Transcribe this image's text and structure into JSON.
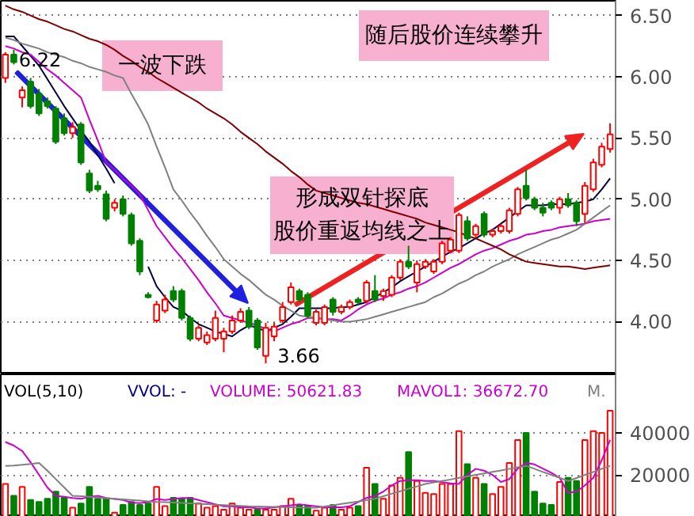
{
  "chart_data": [
    {
      "type": "candlestick",
      "categories": [
        null,
        null,
        null,
        null,
        null,
        null,
        null,
        null,
        null,
        null,
        null,
        null,
        null,
        null,
        null,
        null,
        null,
        null,
        null,
        null,
        null,
        null,
        null,
        null,
        null,
        null,
        null,
        null,
        null,
        null,
        null,
        null,
        null,
        null,
        null,
        null,
        null,
        null,
        null,
        null,
        null,
        null,
        null,
        null,
        null,
        null,
        null,
        null,
        null,
        null,
        null,
        null,
        null,
        null,
        null,
        null,
        null,
        null,
        null,
        null,
        null,
        null,
        null,
        null,
        null,
        null,
        null,
        null,
        null,
        null,
        null,
        null,
        null
      ],
      "ohlc": [
        [
          5.99,
          6.2,
          5.95,
          6.18
        ],
        [
          6.18,
          6.22,
          6.1,
          6.12
        ],
        [
          5.83,
          5.92,
          5.75,
          5.89
        ],
        [
          5.96,
          5.99,
          5.74,
          5.76
        ],
        [
          5.86,
          5.9,
          5.68,
          5.7
        ],
        [
          5.8,
          5.83,
          5.74,
          5.76
        ],
        [
          5.74,
          5.76,
          5.45,
          5.47
        ],
        [
          5.66,
          5.7,
          5.52,
          5.54
        ],
        [
          5.54,
          5.63,
          5.5,
          5.59
        ],
        [
          5.61,
          5.63,
          5.28,
          5.3
        ],
        [
          5.21,
          5.24,
          5.05,
          5.07
        ],
        [
          5.11,
          5.15,
          5.06,
          5.08
        ],
        [
          5.04,
          5.07,
          4.82,
          4.84
        ],
        [
          4.93,
          5.0,
          4.9,
          4.97
        ],
        [
          5.0,
          5.03,
          4.86,
          4.88
        ],
        [
          4.87,
          4.89,
          4.62,
          4.64
        ],
        [
          4.66,
          4.68,
          4.38,
          4.41
        ],
        [
          4.22,
          4.24,
          4.19,
          4.2
        ],
        [
          4.01,
          4.17,
          3.99,
          4.14
        ],
        [
          4.09,
          4.22,
          4.07,
          4.18
        ],
        [
          4.25,
          4.29,
          4.16,
          4.18
        ],
        [
          4.25,
          4.27,
          4.01,
          4.03
        ],
        [
          4.03,
          4.05,
          3.84,
          3.86
        ],
        [
          3.86,
          3.97,
          3.84,
          3.95
        ],
        [
          3.83,
          3.92,
          3.81,
          3.89
        ],
        [
          3.86,
          4.09,
          3.84,
          4.03
        ],
        [
          3.86,
          3.95,
          3.75,
          3.92
        ],
        [
          3.92,
          4.05,
          3.9,
          4.01
        ],
        [
          4.01,
          4.11,
          3.99,
          4.08
        ],
        [
          4.09,
          4.12,
          3.94,
          3.96
        ],
        [
          4.01,
          4.03,
          3.77,
          3.79
        ],
        [
          3.72,
          3.99,
          3.66,
          3.95
        ],
        [
          3.88,
          3.99,
          3.84,
          3.96
        ],
        [
          4.01,
          4.16,
          3.99,
          4.12
        ],
        [
          4.16,
          4.32,
          4.14,
          4.28
        ],
        [
          4.25,
          4.27,
          4.16,
          4.18
        ],
        [
          4.22,
          4.24,
          4.03,
          4.05
        ],
        [
          3.99,
          4.1,
          3.97,
          4.08
        ],
        [
          3.99,
          4.14,
          3.97,
          4.12
        ],
        [
          4.18,
          4.2,
          4.05,
          4.08
        ],
        [
          4.08,
          4.14,
          4.06,
          4.12
        ],
        [
          4.12,
          4.18,
          4.1,
          4.16
        ],
        [
          4.18,
          4.2,
          4.14,
          4.16
        ],
        [
          4.17,
          4.34,
          4.15,
          4.32
        ],
        [
          4.25,
          4.38,
          4.16,
          4.18
        ],
        [
          4.21,
          4.27,
          4.17,
          4.25
        ],
        [
          4.22,
          4.38,
          4.2,
          4.36
        ],
        [
          4.36,
          4.51,
          4.34,
          4.49
        ],
        [
          4.49,
          4.62,
          4.43,
          4.45
        ],
        [
          4.32,
          4.5,
          4.24,
          4.47
        ],
        [
          4.45,
          4.51,
          4.43,
          4.49
        ],
        [
          4.41,
          4.51,
          4.39,
          4.49
        ],
        [
          4.49,
          4.66,
          4.47,
          4.64
        ],
        [
          4.58,
          4.69,
          4.56,
          4.67
        ],
        [
          4.58,
          4.89,
          4.56,
          4.87
        ],
        [
          4.82,
          4.86,
          4.66,
          4.68
        ],
        [
          4.71,
          4.8,
          4.69,
          4.78
        ],
        [
          4.88,
          4.9,
          4.69,
          4.71
        ],
        [
          4.71,
          4.76,
          4.69,
          4.74
        ],
        [
          4.74,
          4.8,
          4.72,
          4.78
        ],
        [
          4.74,
          4.93,
          4.72,
          4.91
        ],
        [
          4.88,
          5.1,
          4.86,
          5.08
        ],
        [
          5.11,
          5.24,
          4.99,
          5.01
        ],
        [
          5.0,
          5.02,
          4.91,
          4.93
        ],
        [
          4.93,
          4.97,
          4.86,
          4.89
        ],
        [
          4.97,
          4.99,
          4.91,
          4.93
        ],
        [
          4.93,
          5.02,
          4.88,
          5.0
        ],
        [
          5.0,
          5.05,
          4.93,
          4.95
        ],
        [
          4.97,
          4.99,
          4.78,
          4.82
        ],
        [
          4.88,
          5.14,
          4.8,
          5.11
        ],
        [
          5.08,
          5.33,
          5.06,
          5.3
        ],
        [
          5.28,
          5.46,
          5.26,
          5.43
        ],
        [
          5.41,
          5.62,
          5.38,
          5.53
        ]
      ],
      "series": [
        {
          "type": "line",
          "color": "#000040",
          "values": [
            6.33,
            6.33,
            6.25,
            6.17,
            6.09,
            5.98,
            5.87,
            5.76,
            5.66,
            5.56,
            5.47,
            5.36,
            5.25,
            5.13,
            null,
            null,
            null,
            4.45,
            4.29,
            4.2,
            4.12,
            4.09,
            4.03,
            3.98,
            3.95,
            3.92,
            3.9,
            3.88,
            3.93,
            3.97,
            3.95,
            3.92,
            3.95,
            3.98,
            4.04,
            4.11,
            4.11,
            4.11,
            4.11,
            4.11,
            4.12,
            4.12,
            4.14,
            4.16,
            4.2,
            4.24,
            4.28,
            4.33,
            4.37,
            4.41,
            4.45,
            4.49,
            4.53,
            4.57,
            4.6,
            4.64,
            4.68,
            4.72,
            4.75,
            4.8,
            4.85,
            4.9,
            4.95,
            4.95,
            4.95,
            4.96,
            4.96,
            4.96,
            4.97,
            4.98,
            5.0,
            5.08,
            5.17
          ]
        },
        {
          "type": "line",
          "color": "#cc00cc",
          "values": [
            6.25,
            6.23,
            6.2,
            6.18,
            6.12,
            6.06,
            6.01,
            5.95,
            5.89,
            5.83,
            5.65,
            5.48,
            5.3,
            5.24,
            5.17,
            5.11,
            5.04,
            4.91,
            4.78,
            4.69,
            4.6,
            4.52,
            4.43,
            4.34,
            4.24,
            4.15,
            4.05,
            4.03,
            4.01,
            3.99,
            3.97,
            3.94,
            3.92,
            3.95,
            3.98,
            4.0,
            4.03,
            4.03,
            4.02,
            4.02,
            4.01,
            4.05,
            4.1,
            4.14,
            4.17,
            4.19,
            4.22,
            4.24,
            4.27,
            4.29,
            4.32,
            4.36,
            4.4,
            4.44,
            4.47,
            4.51,
            4.55,
            4.58,
            4.6,
            4.63,
            4.66,
            4.68,
            4.71,
            4.72,
            4.74,
            4.75,
            4.77,
            4.78,
            4.79,
            4.8,
            4.82,
            4.83,
            4.84
          ]
        },
        {
          "type": "line",
          "color": "#808080",
          "values": [
            6.32,
            6.3,
            6.27,
            6.25,
            6.23,
            6.2,
            6.18,
            6.16,
            6.13,
            6.11,
            6.08,
            6.06,
            6.04,
            6.01,
            5.99,
            5.86,
            5.74,
            5.61,
            5.43,
            5.26,
            5.08,
            4.99,
            4.89,
            4.8,
            4.7,
            4.61,
            4.51,
            4.45,
            4.39,
            4.34,
            4.28,
            4.22,
            4.18,
            4.13,
            4.09,
            4.05,
            4.04,
            4.03,
            4.02,
            4.01,
            4.0,
            4.0,
            4.01,
            4.02,
            4.04,
            4.06,
            4.08,
            4.1,
            4.12,
            4.14,
            4.16,
            4.2,
            4.23,
            4.27,
            4.31,
            4.34,
            4.38,
            4.41,
            4.45,
            4.48,
            4.51,
            4.55,
            4.58,
            4.61,
            4.64,
            4.67,
            4.69,
            4.72,
            4.75,
            4.8,
            4.85,
            4.9,
            4.95
          ]
        },
        {
          "type": "line",
          "color": "#800000",
          "values": [
            6.58,
            6.55,
            6.53,
            6.5,
            6.47,
            6.45,
            6.42,
            6.39,
            6.37,
            6.34,
            6.31,
            6.29,
            6.26,
            6.22,
            6.17,
            6.13,
            6.08,
            6.04,
            5.99,
            5.95,
            5.91,
            5.87,
            5.83,
            5.79,
            5.74,
            5.7,
            5.66,
            5.61,
            5.55,
            5.5,
            5.45,
            5.39,
            5.34,
            5.29,
            5.23,
            5.18,
            5.12,
            5.07,
            5.05,
            5.03,
            5.01,
            4.99,
            4.97,
            4.96,
            4.94,
            4.92,
            4.9,
            4.88,
            4.86,
            4.84,
            4.81,
            4.79,
            4.77,
            4.75,
            4.73,
            4.7,
            4.68,
            4.65,
            4.62,
            4.59,
            4.55,
            4.52,
            4.49,
            4.48,
            4.47,
            4.46,
            4.45,
            4.45,
            4.44,
            4.43,
            4.44,
            4.45,
            4.46
          ]
        }
      ],
      "ylim": [
        3.57,
        6.62
      ],
      "yticks": [
        {
          "value": 4.0,
          "label": "4.00"
        },
        {
          "value": 4.5,
          "label": "4.50"
        },
        {
          "value": 5.0,
          "label": "5.00"
        },
        {
          "value": 5.5,
          "label": "5.50"
        },
        {
          "value": 6.0,
          "label": "6.00"
        },
        {
          "value": 6.5,
          "label": "6.50"
        }
      ],
      "grid": "y",
      "tick_labels": "y",
      "annotations": [
        {
          "text": "6.22",
          "y": 6.22
        },
        "3.66",
        "一波下跌",
        "形成双针探底",
        "股价重返均线之上",
        "随后股价连续攀升"
      ]
    },
    {
      "type": "bar",
      "categories": [
        null,
        null,
        null,
        null,
        null,
        null,
        null,
        null,
        null,
        null,
        null,
        null,
        null,
        null,
        null,
        null,
        null,
        null,
        null,
        null,
        null,
        null,
        null,
        null,
        null,
        null,
        null,
        null,
        null,
        null,
        null,
        null,
        null,
        null,
        null,
        null,
        null,
        null,
        null,
        null,
        null,
        null,
        null,
        null,
        null,
        null,
        null,
        null,
        null,
        null,
        null,
        null,
        null,
        null,
        null,
        null,
        null,
        null,
        null,
        null,
        null,
        null,
        null,
        null,
        null,
        null,
        null,
        null,
        null,
        null,
        null,
        null,
        null
      ],
      "values": [
        15700,
        10000,
        14300,
        8000,
        7100,
        8600,
        12000,
        9100,
        4300,
        6300,
        14300,
        8600,
        8600,
        2000,
        5700,
        7100,
        5700,
        6300,
        14300,
        5100,
        9100,
        8600,
        9100,
        6300,
        4300,
        5100,
        3400,
        6300,
        4300,
        3400,
        3400,
        3400,
        3400,
        5100,
        8600,
        5700,
        5100,
        2900,
        4300,
        5700,
        3400,
        4300,
        5100,
        23400,
        15700,
        8600,
        14900,
        18600,
        30900,
        17100,
        11400,
        10900,
        15700,
        15700,
        40900,
        25100,
        18600,
        15700,
        10900,
        14300,
        25700,
        36600,
        40000,
        12000,
        6300,
        5700,
        16600,
        18600,
        17100,
        36600,
        40900,
        40000,
        50600
      ],
      "colors": [
        "#ff0000",
        "#008000",
        "#ff0000",
        "#008000",
        "#008000",
        "#008000",
        "#008000",
        "#008000",
        "#ff0000",
        "#008000",
        "#008000",
        "#008000",
        "#008000",
        "#ff0000",
        "#008000",
        "#008000",
        "#008000",
        "#008000",
        "#ff0000",
        "#ff0000",
        "#008000",
        "#008000",
        "#008000",
        "#ff0000",
        "#ff0000",
        "#ff0000",
        "#ff0000",
        "#ff0000",
        "#ff0000",
        "#ff0000",
        "#008000",
        "#ff0000",
        "#ff0000",
        "#ff0000",
        "#ff0000",
        "#008000",
        "#008000",
        "#ff0000",
        "#ff0000",
        "#008000",
        "#ff0000",
        "#ff0000",
        "#008000",
        "#ff0000",
        "#008000",
        "#ff0000",
        "#ff0000",
        "#ff0000",
        "#008000",
        "#ff0000",
        "#ff0000",
        "#ff0000",
        "#ff0000",
        "#ff0000",
        "#ff0000",
        "#008000",
        "#ff0000",
        "#008000",
        "#ff0000",
        "#ff0000",
        "#ff0000",
        "#ff0000",
        "#008000",
        "#008000",
        "#008000",
        "#008000",
        "#ff0000",
        "#008000",
        "#008000",
        "#ff0000",
        "#ff0000",
        "#ff0000",
        "#ff0000"
      ],
      "series": [
        {
          "type": "line",
          "color": "#cc00cc",
          "values": [
            35700,
            34000,
            31400,
            26000,
            20000,
            14000,
            10000,
            9500,
            9000,
            8600,
            9500,
            10000,
            9000,
            8500,
            8000,
            6800,
            6500,
            7000,
            8500,
            8000,
            8500,
            9000,
            9000,
            8000,
            7000,
            6000,
            5000,
            5000,
            4500,
            4500,
            4000,
            4000,
            4500,
            5000,
            5500,
            6000,
            5500,
            5000,
            4500,
            4500,
            4500,
            5000,
            7000,
            9000,
            10000,
            12000,
            15000,
            17100,
            17500,
            17500,
            17100,
            17100,
            16500,
            16000,
            15700,
            20000,
            22900,
            22000,
            20000,
            16600,
            18000,
            23000,
            25700,
            25000,
            23000,
            21000,
            18600,
            11400,
            12000,
            15000,
            18600,
            27000,
            36700
          ]
        },
        {
          "type": "line",
          "color": "#808080",
          "values": [
            24300,
            24500,
            24800,
            25200,
            25700,
            22000,
            18000,
            14000,
            10000,
            9800,
            9500,
            9200,
            8900,
            8600,
            8300,
            8000,
            7700,
            7400,
            7100,
            7000,
            6800,
            6600,
            6400,
            6200,
            6000,
            5800,
            5600,
            5400,
            5200,
            5000,
            4900,
            4800,
            4700,
            4600,
            4500,
            4400,
            4300,
            4300,
            4900,
            5500,
            6100,
            6700,
            7300,
            7900,
            8600,
            9800,
            11000,
            12200,
            13400,
            14500,
            15700,
            16400,
            17100,
            17800,
            18600,
            19300,
            20000,
            20700,
            21400,
            22100,
            22900,
            23600,
            24300,
            22900,
            21400,
            20000,
            18600,
            17100,
            18500,
            20000,
            21400,
            22900,
            24300
          ]
        }
      ],
      "ylim": [
        0,
        68000
      ],
      "yticks": [
        20000,
        40000
      ],
      "grid": "y",
      "tick_labels": "y",
      "annotations": [
        "VOL(5,10)",
        "VVOL: -",
        "VOLUME: 50621.83",
        "MAVOL1: 36672.70",
        "M."
      ]
    }
  ]
}
